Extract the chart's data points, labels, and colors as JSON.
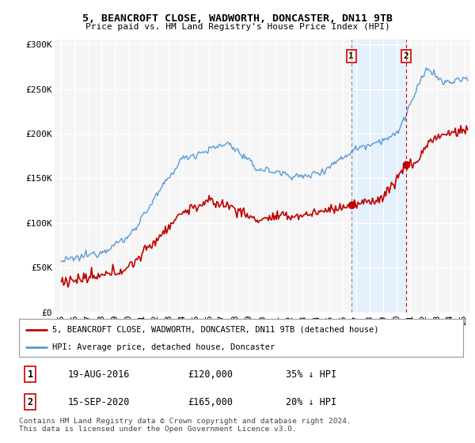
{
  "title1": "5, BEANCROFT CLOSE, WADWORTH, DONCASTER, DN11 9TB",
  "title2": "Price paid vs. HM Land Registry's House Price Index (HPI)",
  "ylabel_ticks": [
    "£0",
    "£50K",
    "£100K",
    "£150K",
    "£200K",
    "£250K",
    "£300K"
  ],
  "ytick_values": [
    0,
    50000,
    100000,
    150000,
    200000,
    250000,
    300000
  ],
  "ylim": [
    0,
    305000
  ],
  "xlim_start": 1994.5,
  "xlim_end": 2025.5,
  "hpi_color": "#5b9bd5",
  "price_color": "#c00000",
  "marker1_x": 2016.63,
  "marker1_y": 120000,
  "marker2_x": 2020.71,
  "marker2_y": 165000,
  "shade_color": "#ddeeff",
  "vline1_color": "#888888",
  "vline2_color": "#cc0000",
  "legend_entries": [
    "5, BEANCROFT CLOSE, WADWORTH, DONCASTER, DN11 9TB (detached house)",
    "HPI: Average price, detached house, Doncaster"
  ],
  "table_data": [
    [
      "1",
      "19-AUG-2016",
      "£120,000",
      "35% ↓ HPI"
    ],
    [
      "2",
      "15-SEP-2020",
      "£165,000",
      "20% ↓ HPI"
    ]
  ],
  "footnote": "Contains HM Land Registry data © Crown copyright and database right 2024.\nThis data is licensed under the Open Government Licence v3.0.",
  "bg_color": "#ffffff",
  "plot_bg_color": "#f5f5f5"
}
